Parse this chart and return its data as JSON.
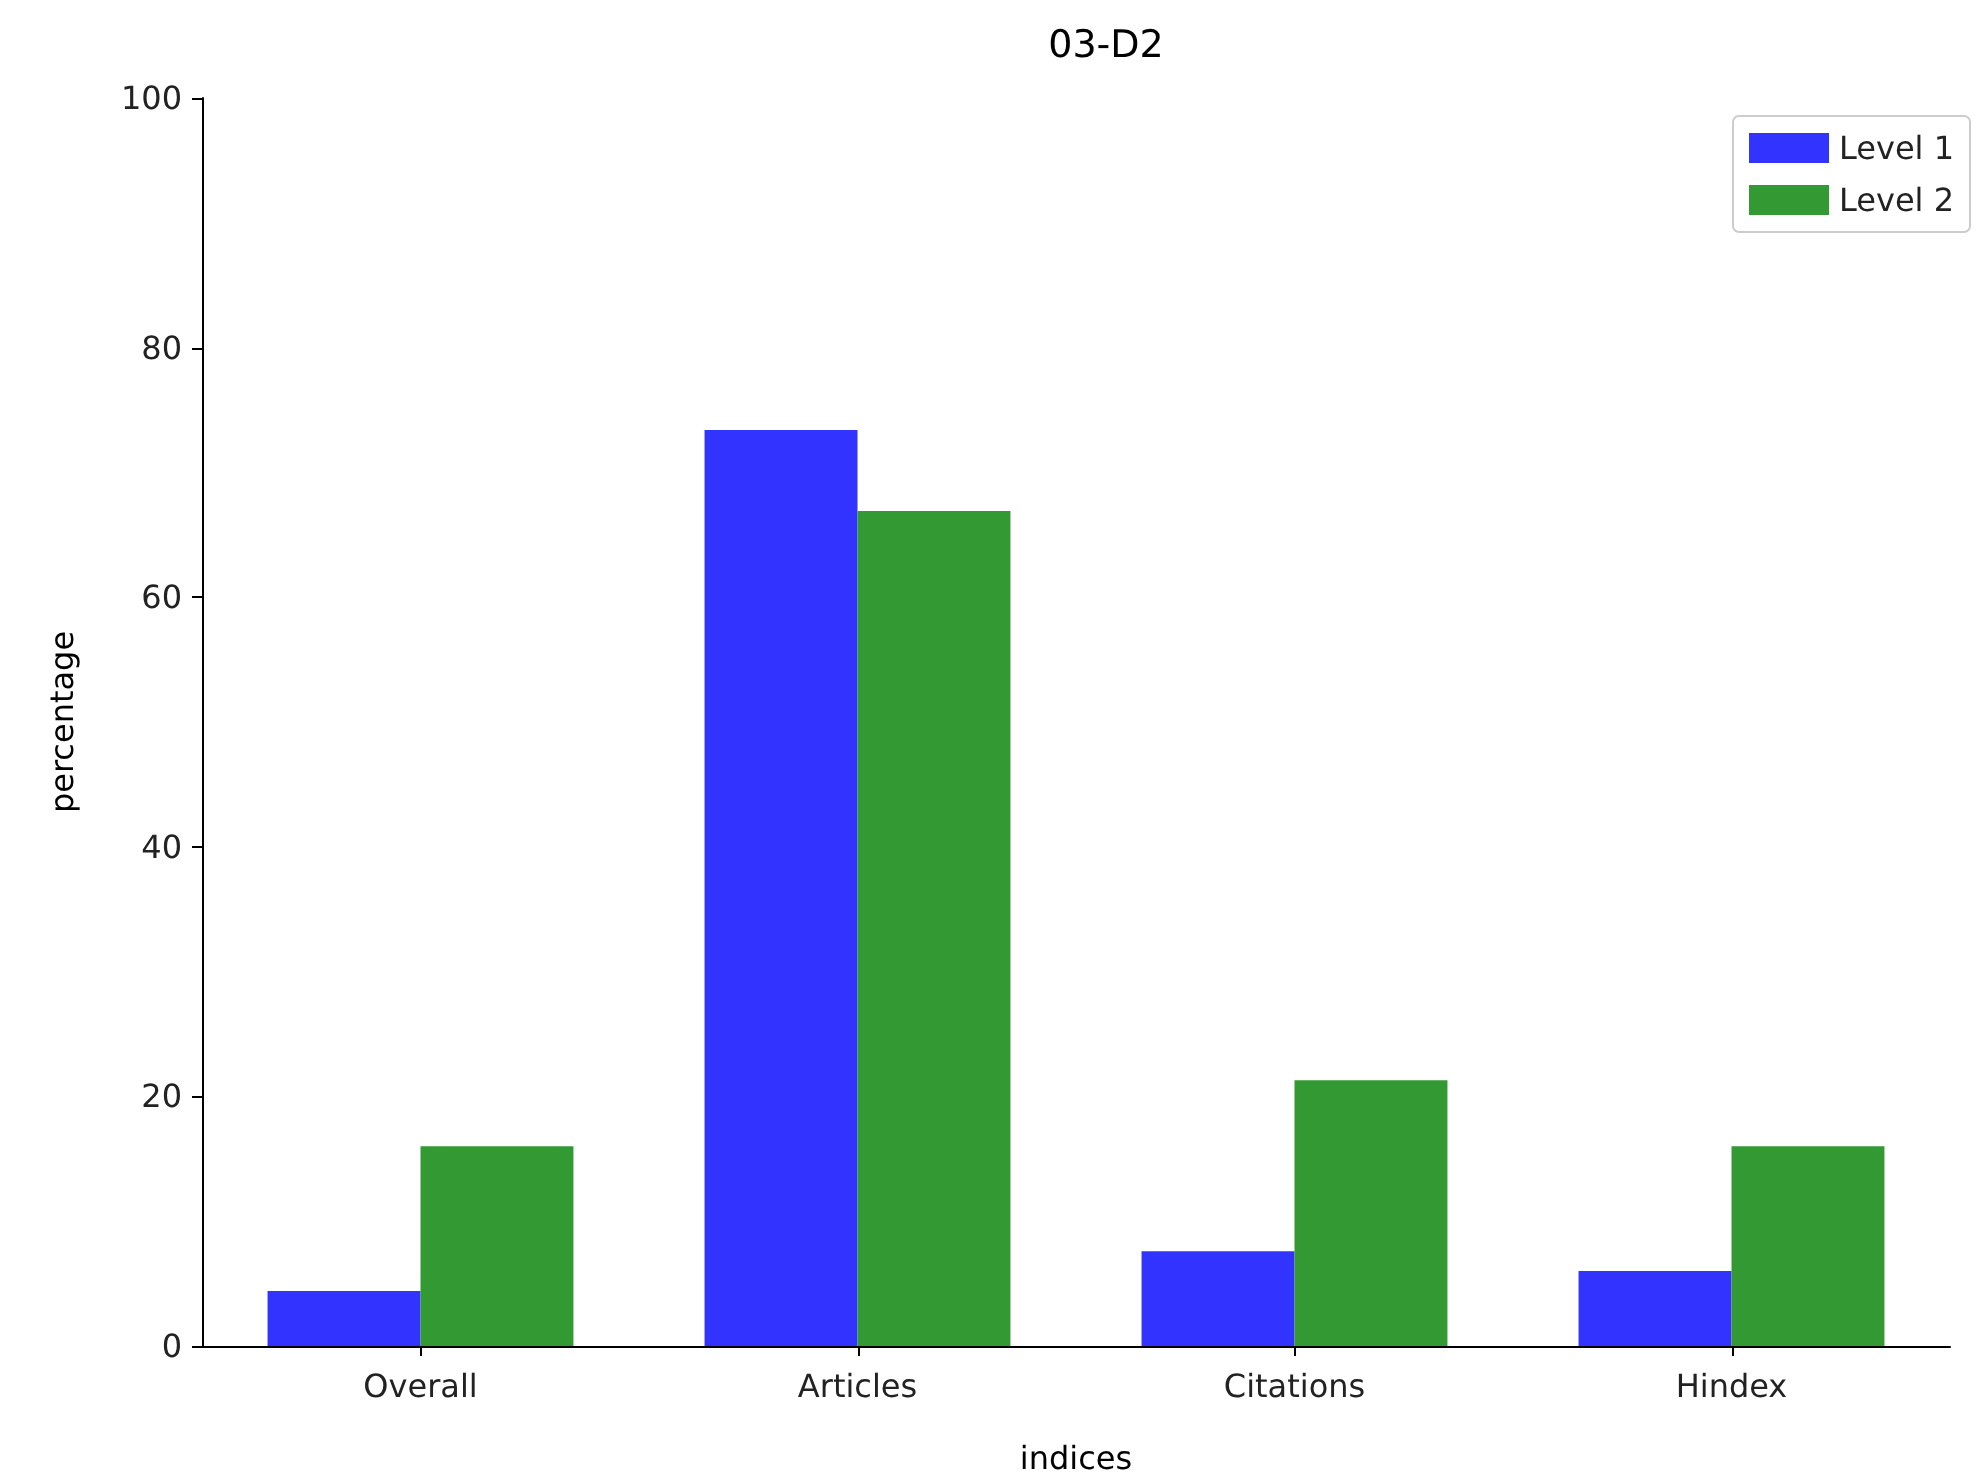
{
  "chart_data": {
    "type": "bar",
    "title": "03-D2",
    "xlabel": "indices",
    "ylabel": "percentage",
    "categories": [
      "Overall",
      "Articles",
      "Citations",
      "Hindex"
    ],
    "series": [
      {
        "name": "Level 1",
        "color": "#3333ff",
        "values": [
          4.4,
          73.4,
          7.6,
          6.0
        ]
      },
      {
        "name": "Level 2",
        "color": "#339933",
        "values": [
          16.0,
          66.9,
          21.3,
          16.0
        ]
      }
    ],
    "ylim": [
      0,
      100
    ],
    "yticks": [
      0,
      20,
      40,
      60,
      80,
      100
    ],
    "grid": false,
    "legend": "top right"
  }
}
